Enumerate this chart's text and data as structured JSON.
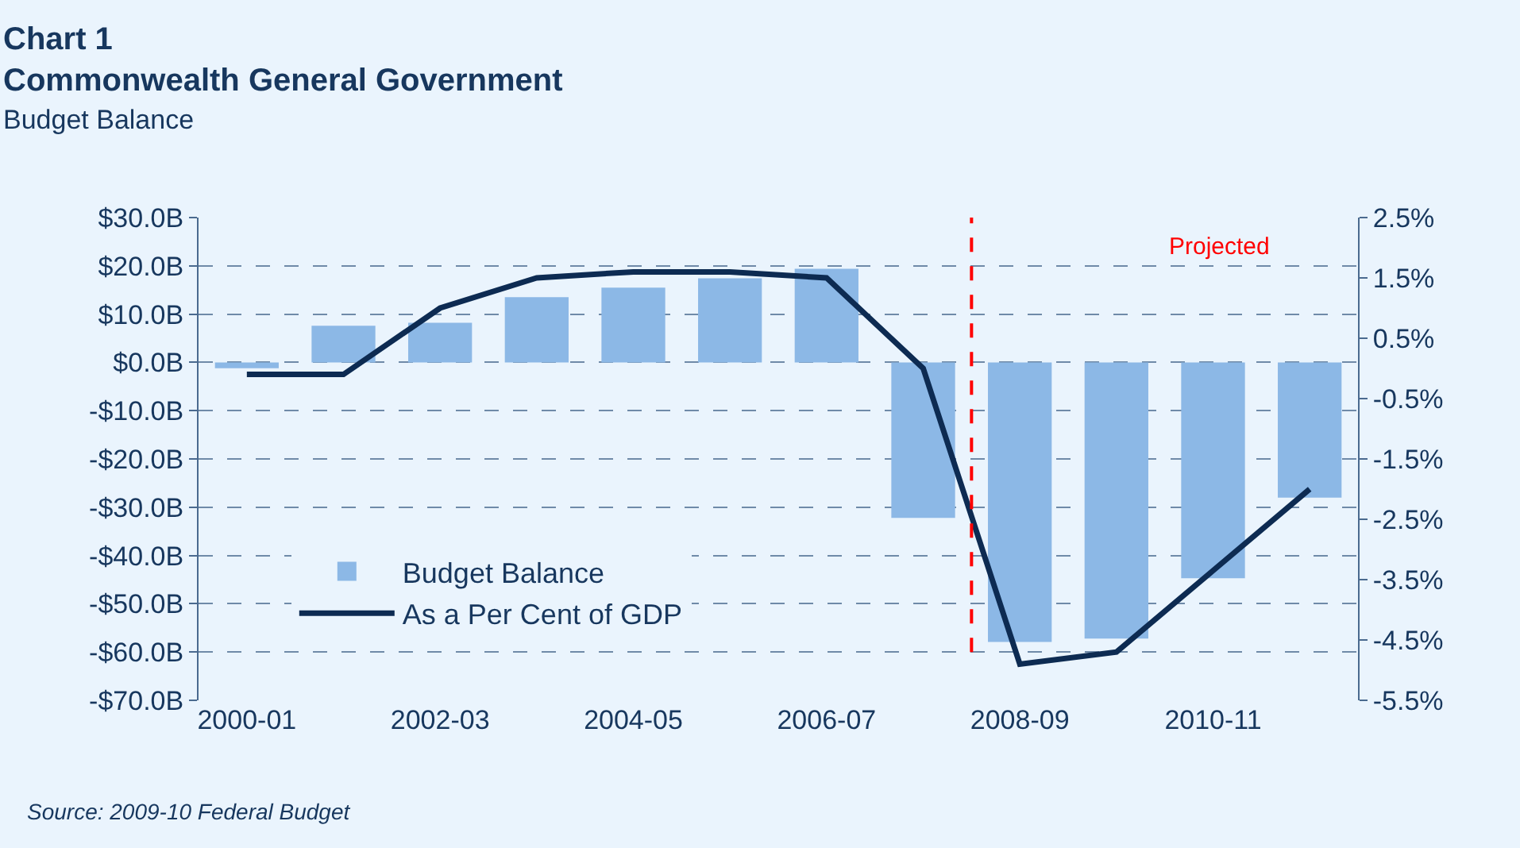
{
  "chart_data": {
    "type": "bar",
    "title": "Chart 1\nCommonwealth General Government",
    "subtitle": "Budget Balance",
    "categories": [
      "2000-01",
      null,
      "2002-03",
      null,
      "2004-05",
      null,
      "2006-07",
      null,
      "2008-09",
      null,
      "2010-11",
      null
    ],
    "series": [
      {
        "name": "Budget Balance",
        "color": "#8cb8e6",
        "values": [
          -1.2,
          7.6,
          8.2,
          13.5,
          15.5,
          17.4,
          19.4,
          -32.2,
          -57.9,
          -57.2,
          -44.7,
          -28.0
        ]
      },
      {
        "name": "As a Per Cent of GDP",
        "type": "line",
        "axis": "y2",
        "color": "#0d2b52",
        "values": [
          -0.1,
          -0.1,
          1.0,
          1.5,
          1.6,
          1.6,
          1.5,
          0.0,
          -4.9,
          -4.7,
          -3.35,
          -2.0
        ]
      }
    ],
    "ylim": [
      -70,
      30
    ],
    "yticks": [
      {
        "value": 30,
        "label": "$30.0B"
      },
      {
        "value": 20,
        "label": "$20.0B"
      },
      {
        "value": 10,
        "label": "$10.0B"
      },
      {
        "value": 0,
        "label": "$0.0B"
      },
      {
        "value": -10,
        "label": "-$10.0B"
      },
      {
        "value": -20,
        "label": "-$20.0B"
      },
      {
        "value": -30,
        "label": "-$30.0B"
      },
      {
        "value": -40,
        "label": "-$40.0B"
      },
      {
        "value": -50,
        "label": "-$50.0B"
      },
      {
        "value": -60,
        "label": "-$60.0B"
      },
      {
        "value": -70,
        "label": "-$70.0B"
      }
    ],
    "y2lim": [
      -5.5,
      2.5
    ],
    "y2ticks": [
      {
        "value": 2.5,
        "label": "2.5%"
      },
      {
        "value": 1.5,
        "label": "1.5%"
      },
      {
        "value": 0.5,
        "label": "0.5%"
      },
      {
        "value": -0.5,
        "label": "-0.5%"
      },
      {
        "value": -1.5,
        "label": "-1.5%"
      },
      {
        "value": -2.5,
        "label": "-2.5%"
      },
      {
        "value": -3.5,
        "label": "-3.5%"
      },
      {
        "value": -4.5,
        "label": "-4.5%"
      },
      {
        "value": -5.5,
        "label": "-5.5%"
      }
    ],
    "ref_lines": [
      {
        "axis": "x",
        "value": "2008-09",
        "label": "Projected",
        "color": "#ff0000",
        "line_style": "dashed"
      }
    ],
    "annotations": [
      "Source: 2009-10 Federal Budget"
    ],
    "grid": "y",
    "legend": "bottom left",
    "marker": "none",
    "line_style": "solid"
  }
}
